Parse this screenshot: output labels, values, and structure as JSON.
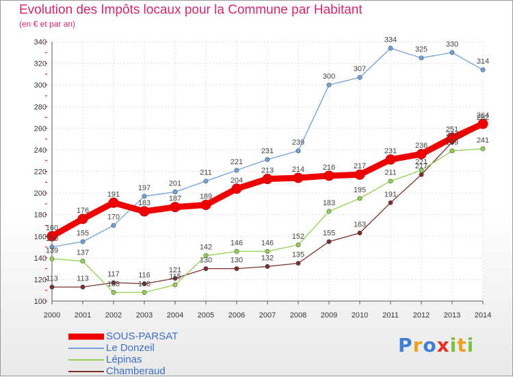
{
  "chart_data": {
    "type": "line",
    "title": "Evolution des Impôts locaux pour la Commune par Habitant",
    "subtitle": "(en € et par an)",
    "xlabel": "",
    "ylabel": "",
    "ylim": [
      100,
      340
    ],
    "yticks": [
      100,
      120,
      140,
      160,
      180,
      200,
      220,
      240,
      260,
      280,
      300,
      320,
      340
    ],
    "x": [
      "2000",
      "2001",
      "2002",
      "2003",
      "2004",
      "2005",
      "2006",
      "2007",
      "2008",
      "2009",
      "2010",
      "2011",
      "2012",
      "2013",
      "2014"
    ],
    "grid": true,
    "legend_position": "bottom-left",
    "series": [
      {
        "name": "SOUS-PARSAT",
        "color": "#ee0000",
        "values": [
          160,
          176,
          191,
          183,
          187,
          189,
          204,
          213,
          214,
          216,
          217,
          231,
          236,
          251,
          264
        ]
      },
      {
        "name": "Le Donzeil",
        "color": "#6fa1d8",
        "values": [
          150,
          155,
          170,
          197,
          201,
          211,
          221,
          231,
          239,
          300,
          307,
          334,
          325,
          330,
          314
        ]
      },
      {
        "name": "Lépinas",
        "color": "#92d050",
        "values": [
          139,
          137,
          108,
          108,
          115,
          142,
          146,
          146,
          152,
          183,
          195,
          211,
          221,
          239,
          241
        ]
      },
      {
        "name": "Chamberaud",
        "color": "#7b2e2e",
        "values": [
          113,
          113,
          117,
          116,
          121,
          130,
          130,
          132,
          135,
          155,
          163,
          191,
          217,
          247,
          262
        ]
      }
    ]
  },
  "logo": {
    "letters": [
      "P",
      "r",
      "o",
      "x",
      "i",
      "t",
      "i"
    ],
    "colors": [
      "#3d7fd6",
      "#f0a020",
      "#3d7fd6",
      "#e83020",
      "#7cc242",
      "#f0a020",
      "#7cc242"
    ]
  }
}
